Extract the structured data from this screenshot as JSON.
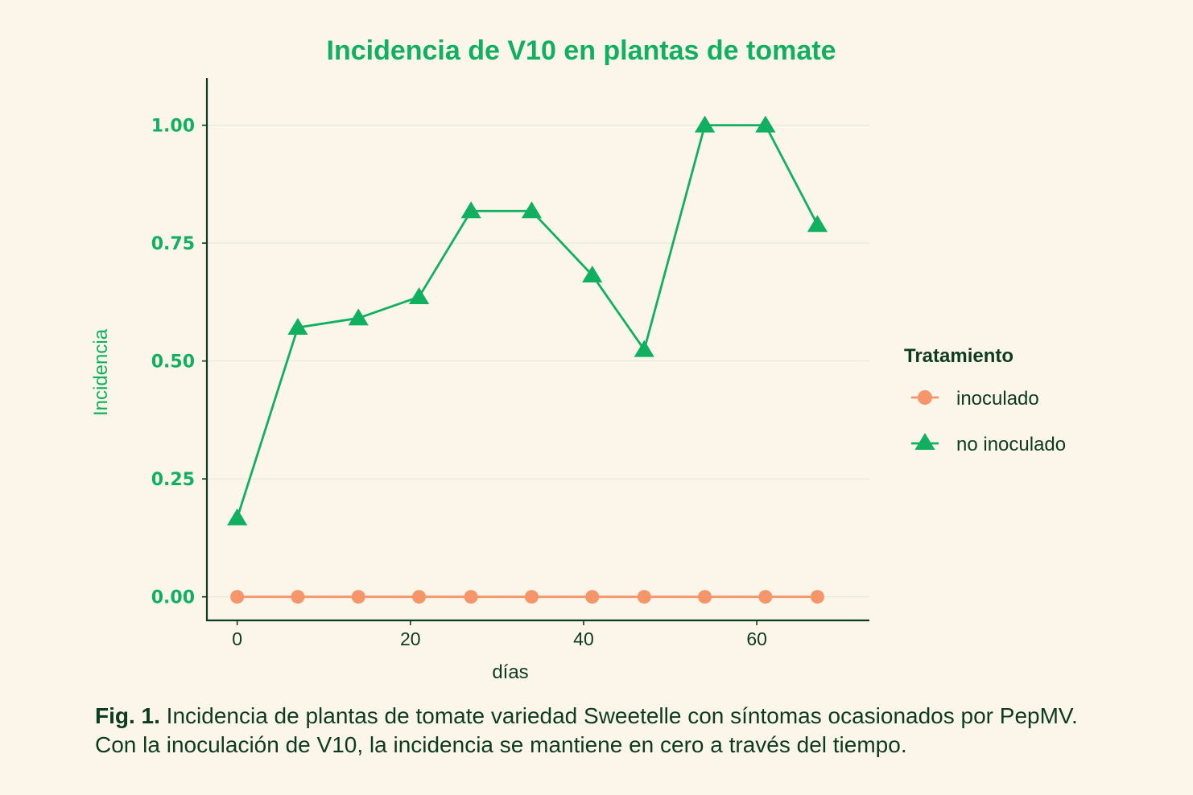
{
  "chart_data": {
    "type": "line",
    "title": "Incidencia de V10 en plantas de tomate",
    "xlabel": "días",
    "ylabel": "Incidencia",
    "xlim": [
      -3.5,
      73
    ],
    "ylim": [
      -0.05,
      1.1
    ],
    "xticks": [
      0,
      20,
      40,
      60
    ],
    "xtick_labels": [
      "0",
      "20",
      "40",
      "60"
    ],
    "yticks": [
      0,
      0.25,
      0.5,
      0.75,
      1.0
    ],
    "ytick_labels": [
      "0.00",
      "0.25",
      "0.50",
      "0.75",
      "1.00"
    ],
    "grid": "horizontal",
    "legend_title": "Tratamiento",
    "legend_position": "right",
    "series": [
      {
        "name": "inoculado",
        "color": "#f4956a",
        "marker": "circle",
        "x": [
          0,
          7,
          14,
          21,
          27,
          34,
          41,
          47,
          54,
          61,
          67
        ],
        "y": [
          0,
          0,
          0,
          0,
          0,
          0,
          0,
          0,
          0,
          0,
          0
        ]
      },
      {
        "name": "no inoculado",
        "color": "#10b060",
        "marker": "triangle",
        "x": [
          0,
          7,
          14,
          21,
          27,
          34,
          41,
          47,
          54,
          61,
          67
        ],
        "y": [
          0.167,
          0.571,
          0.591,
          0.636,
          0.818,
          0.818,
          0.682,
          0.524,
          1.0,
          1.0,
          0.789
        ]
      }
    ]
  },
  "caption": {
    "label": "Fig. 1.",
    "text": " Incidencia de plantas de tomate variedad Sweetelle con síntomas ocasionados por PepMV. Con la inoculación de V10, la incidencia se mantiene en cero a través del tiempo."
  }
}
